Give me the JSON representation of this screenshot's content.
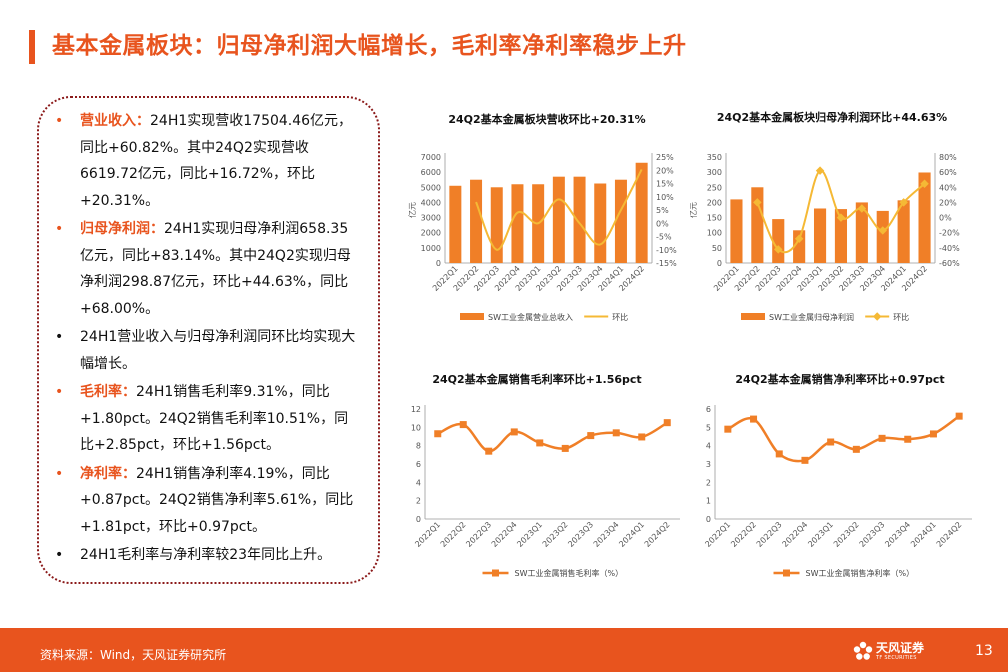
{
  "page_title": "基本金属板块：归母净利润大幅增长，毛利率净利率稳步上升",
  "bullets": [
    {
      "label": "营业收入：",
      "text": "24H1实现营收17504.46亿元，同比+60.82%。其中24Q2实现营收6619.72亿元，同比+16.72%，环比+20.31%。"
    },
    {
      "label": "归母净利润：",
      "text": "24H1实现归母净利润658.35亿元，同比+83.14%。其中24Q2实现归母净利润298.87亿元，环比+44.63%，同比+68.00%。"
    },
    {
      "label": "",
      "text": "24H1营业收入与归母净利润同环比均实现大幅增长。"
    },
    {
      "label": "毛利率：",
      "text": "24H1销售毛利率9.31%，同比+1.80pct。24Q2销售毛利率10.51%，同比+2.85pct，环比+1.56pct。"
    },
    {
      "label": "净利率：",
      "text": "24H1销售净利率4.19%，同比+0.87pct。24Q2销售净利率5.61%，同比+1.81pct，环比+0.97pct。"
    },
    {
      "label": "",
      "text": "24H1毛利率与净利率较23年同比上升。"
    }
  ],
  "bullet_marker": "•",
  "colors": {
    "accent": "#e8541e",
    "bar": "#f07f27",
    "line": "#f5b935",
    "line_marker": "#f07f27",
    "box_border": "#8b1a1a"
  },
  "chart_data": [
    {
      "type": "bar",
      "title": "24Q2基本金属板块营收环比+20.31%",
      "categories": [
        "2022Q1",
        "2022Q2",
        "2022Q3",
        "2022Q4",
        "2023Q1",
        "2023Q2",
        "2023Q3",
        "2023Q4",
        "2024Q1",
        "2024Q2"
      ],
      "ylabel": "亿元",
      "ylim": [
        0,
        7000
      ],
      "yticks": [
        0,
        1000,
        2000,
        3000,
        4000,
        5000,
        6000,
        7000
      ],
      "y2lim": [
        -15,
        25
      ],
      "y2ticks": [
        "25%",
        "20%",
        "15%",
        "10%",
        "5%",
        "0%",
        "-5%",
        "-10%",
        "-15%"
      ],
      "series": [
        {
          "name": "SW工业金属营业总收入",
          "type": "bar",
          "axis": "left",
          "values": [
            5100,
            5500,
            5000,
            5200,
            5200,
            5700,
            5700,
            5250,
            5500,
            6620
          ]
        },
        {
          "name": "环比",
          "type": "line",
          "axis": "right",
          "marker": false,
          "values": [
            null,
            8,
            -10,
            4,
            0,
            9,
            0,
            -8,
            5,
            20.31
          ]
        }
      ],
      "legend": "bottom"
    },
    {
      "type": "bar",
      "title": "24Q2基本金属板块归母净利润环比+44.63%",
      "categories": [
        "2022Q1",
        "2022Q2",
        "2022Q3",
        "2022Q4",
        "2023Q1",
        "2023Q2",
        "2023Q3",
        "2023Q4",
        "2024Q1",
        "2024Q2"
      ],
      "ylabel": "亿元",
      "ylim": [
        0,
        350
      ],
      "yticks": [
        0,
        50,
        100,
        150,
        200,
        250,
        300,
        350
      ],
      "y2lim": [
        -60,
        80
      ],
      "y2ticks": [
        "80%",
        "60%",
        "40%",
        "20%",
        "0%",
        "-20%",
        "-40%",
        "-60%"
      ],
      "series": [
        {
          "name": "SW工业金属归母净利润",
          "type": "bar",
          "axis": "left",
          "values": [
            210,
            250,
            145,
            108,
            180,
            178,
            200,
            172,
            207,
            298.87
          ]
        },
        {
          "name": "环比",
          "type": "line",
          "axis": "right",
          "marker": true,
          "values": [
            null,
            20,
            -42,
            -28,
            62,
            0,
            12,
            -17,
            20,
            44.63
          ]
        }
      ],
      "legend": "bottom"
    },
    {
      "type": "line",
      "title": "24Q2基本金属销售毛利率环比+1.56pct",
      "categories": [
        "2022Q1",
        "2022Q2",
        "2022Q3",
        "2022Q4",
        "2023Q1",
        "2023Q2",
        "2023Q3",
        "2023Q4",
        "2024Q1",
        "2024Q2"
      ],
      "ylim": [
        0,
        12
      ],
      "yticks": [
        0,
        2,
        4,
        6,
        8,
        10,
        12
      ],
      "series": [
        {
          "name": "SW工业金属销售毛利率（%）",
          "values": [
            9.3,
            10.3,
            7.4,
            9.5,
            8.3,
            7.7,
            9.1,
            9.4,
            8.95,
            10.51
          ]
        }
      ],
      "legend": "bottom"
    },
    {
      "type": "line",
      "title": "24Q2基本金属销售净利率环比+0.97pct",
      "categories": [
        "2022Q1",
        "2022Q2",
        "2022Q3",
        "2022Q4",
        "2023Q1",
        "2023Q2",
        "2023Q3",
        "2023Q4",
        "2024Q1",
        "2024Q2"
      ],
      "ylim": [
        0,
        6
      ],
      "yticks": [
        0,
        1,
        2,
        3,
        4,
        5,
        6
      ],
      "series": [
        {
          "name": "SW工业金属销售净利率（%）",
          "values": [
            4.9,
            5.45,
            3.55,
            3.2,
            4.2,
            3.8,
            4.4,
            4.35,
            4.64,
            5.61
          ]
        }
      ],
      "legend": "bottom"
    }
  ],
  "footer": {
    "source": "资料来源：Wind，天风证券研究所",
    "logo_cn": "天风证券",
    "logo_en": "TF SECURITIES",
    "page_number": "13"
  }
}
